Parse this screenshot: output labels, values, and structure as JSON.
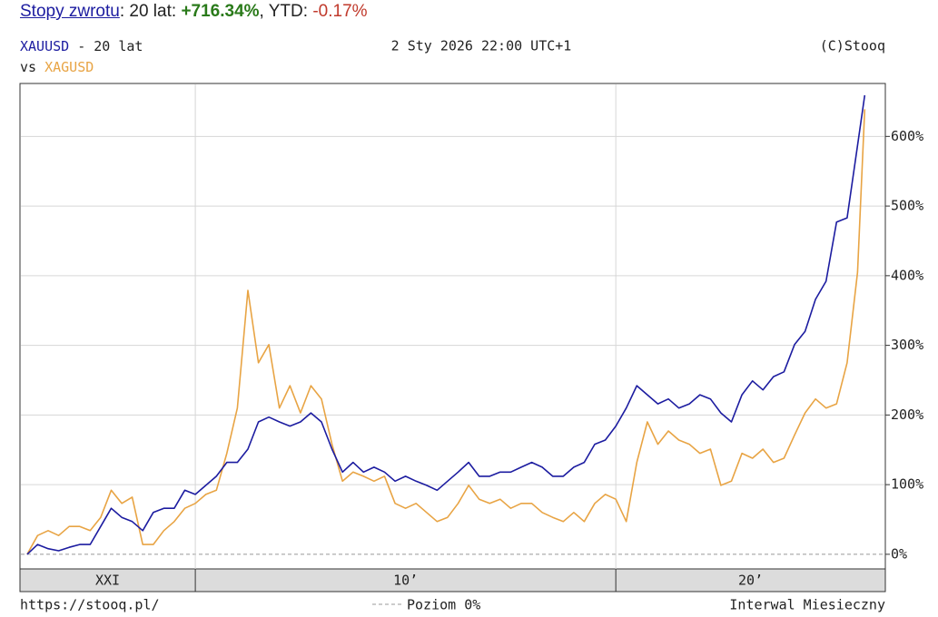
{
  "header": {
    "link": "Stopy zwrotu",
    "period": ": 20 lat: ",
    "total": "+716.34%",
    "ytd_prefix": ", YTD: ",
    "ytd": "-0.17%"
  },
  "chart_data": {
    "type": "line",
    "period": "- 20 lat",
    "compare_label": "vs",
    "date": "2 Sty 2026 22:00 UTC+1",
    "copyright": "(C)Stooq",
    "source_url": "https://stooq.pl/",
    "zero_label": "Poziom 0%",
    "interval": "Interwal Miesieczny",
    "grid": true,
    "xlim": [
      2005.83,
      2026.41
    ],
    "xticks": [
      {
        "value": 2000,
        "label": "XXI"
      },
      {
        "value": 2010,
        "label": "10’"
      },
      {
        "value": 2020,
        "label": "20’"
      }
    ],
    "ylim": [
      -21,
      676
    ],
    "yticks": [
      {
        "value": 0,
        "label": "0%"
      },
      {
        "value": 100,
        "label": "100%"
      },
      {
        "value": 200,
        "label": "200%"
      },
      {
        "value": 300,
        "label": "300%"
      },
      {
        "value": 400,
        "label": "400%"
      },
      {
        "value": 500,
        "label": "500%"
      },
      {
        "value": 600,
        "label": "600%"
      }
    ],
    "x": [
      2006,
      2006.25,
      2006.5,
      2006.75,
      2007,
      2007.25,
      2007.5,
      2007.75,
      2008,
      2008.25,
      2008.5,
      2008.75,
      2009,
      2009.25,
      2009.5,
      2009.75,
      2010,
      2010.25,
      2010.5,
      2010.75,
      2011,
      2011.25,
      2011.5,
      2011.75,
      2012,
      2012.25,
      2012.5,
      2012.75,
      2013,
      2013.25,
      2013.5,
      2013.75,
      2014,
      2014.25,
      2014.5,
      2014.75,
      2015,
      2015.25,
      2015.5,
      2015.75,
      2016,
      2016.25,
      2016.5,
      2016.75,
      2017,
      2017.25,
      2017.5,
      2017.75,
      2018,
      2018.25,
      2018.5,
      2018.75,
      2019,
      2019.25,
      2019.5,
      2019.75,
      2020,
      2020.25,
      2020.5,
      2020.75,
      2021,
      2021.25,
      2021.5,
      2021.75,
      2022,
      2022.25,
      2022.5,
      2022.75,
      2023,
      2023.25,
      2023.5,
      2023.75,
      2024,
      2024.25,
      2024.5,
      2024.75,
      2025,
      2025.25,
      2025.5,
      2025.75,
      2025.92
    ],
    "series": [
      {
        "name": "XAUUSD",
        "color": "#1c1ca0",
        "values": [
          0,
          14,
          8,
          5,
          10,
          14,
          14,
          40,
          66,
          53,
          47,
          34,
          60,
          66,
          66,
          92,
          86,
          99,
          112,
          132,
          132,
          151,
          190,
          197,
          190,
          184,
          190,
          203,
          190,
          151,
          118,
          132,
          118,
          125,
          118,
          105,
          112,
          105,
          99,
          92,
          105,
          118,
          132,
          112,
          112,
          118,
          118,
          125,
          132,
          125,
          112,
          112,
          125,
          132,
          158,
          164,
          184,
          210,
          242,
          229,
          216,
          223,
          210,
          216,
          229,
          223,
          203,
          190,
          229,
          249,
          236,
          255,
          262,
          301,
          320,
          366,
          392,
          477,
          483,
          587,
          659
        ]
      },
      {
        "name": "XAGUSD",
        "color": "#e8a444",
        "values": [
          0,
          27,
          34,
          27,
          40,
          40,
          34,
          53,
          92,
          73,
          82,
          14,
          14,
          34,
          47,
          66,
          73,
          86,
          92,
          145,
          210,
          379,
          275,
          301,
          210,
          242,
          203,
          242,
          223,
          158,
          105,
          118,
          112,
          105,
          112,
          73,
          66,
          73,
          60,
          47,
          53,
          73,
          99,
          79,
          73,
          79,
          66,
          73,
          73,
          60,
          53,
          47,
          60,
          47,
          73,
          86,
          79,
          47,
          132,
          190,
          158,
          177,
          164,
          158,
          145,
          151,
          99,
          105,
          145,
          138,
          151,
          132,
          138,
          171,
          203,
          223,
          210,
          216,
          275,
          405,
          639
        ]
      }
    ]
  }
}
